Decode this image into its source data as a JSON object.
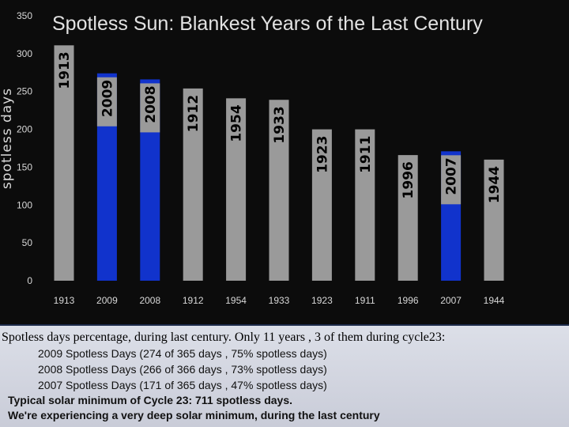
{
  "chart_data": {
    "type": "bar",
    "title": "Spotless Sun: Blankest Years of the Last Century",
    "ylabel": "spotless days",
    "xlabel": "",
    "ylim": [
      0,
      350
    ],
    "yticks": [
      0,
      50,
      100,
      150,
      200,
      250,
      300,
      350
    ],
    "categories": [
      "1913",
      "2009",
      "2008",
      "1912",
      "1954",
      "1933",
      "1923",
      "1911",
      "1996",
      "2007",
      "1944"
    ],
    "values": [
      311,
      274,
      266,
      254,
      241,
      239,
      200,
      200,
      166,
      171,
      160
    ],
    "highlighted": [
      "2009",
      "2008",
      "2007"
    ],
    "colors": {
      "bar": "#9a9a9a",
      "highlight": "#1133cc",
      "title": "#e2e2e2",
      "axis_text": "#d8d8d8"
    },
    "grid": false,
    "legend": "none"
  },
  "caption": {
    "heading": "Spotless days percentage, during last century.  Only 11 years , 3 of them during cycle23:",
    "items": [
      "2009 Spotless Days  (274 of 365 days , 75% spotless days)",
      "2008 Spotless Days  (266 of 366 days , 73% spotless days)",
      "2007 Spotless Days  (171 of 365 days , 47% spotless days)"
    ],
    "minimum_note": "Typical solar minimum of Cycle 23:  711 spotless days.",
    "conclusion": "We're experiencing a very deep solar minimum, during the last century"
  }
}
